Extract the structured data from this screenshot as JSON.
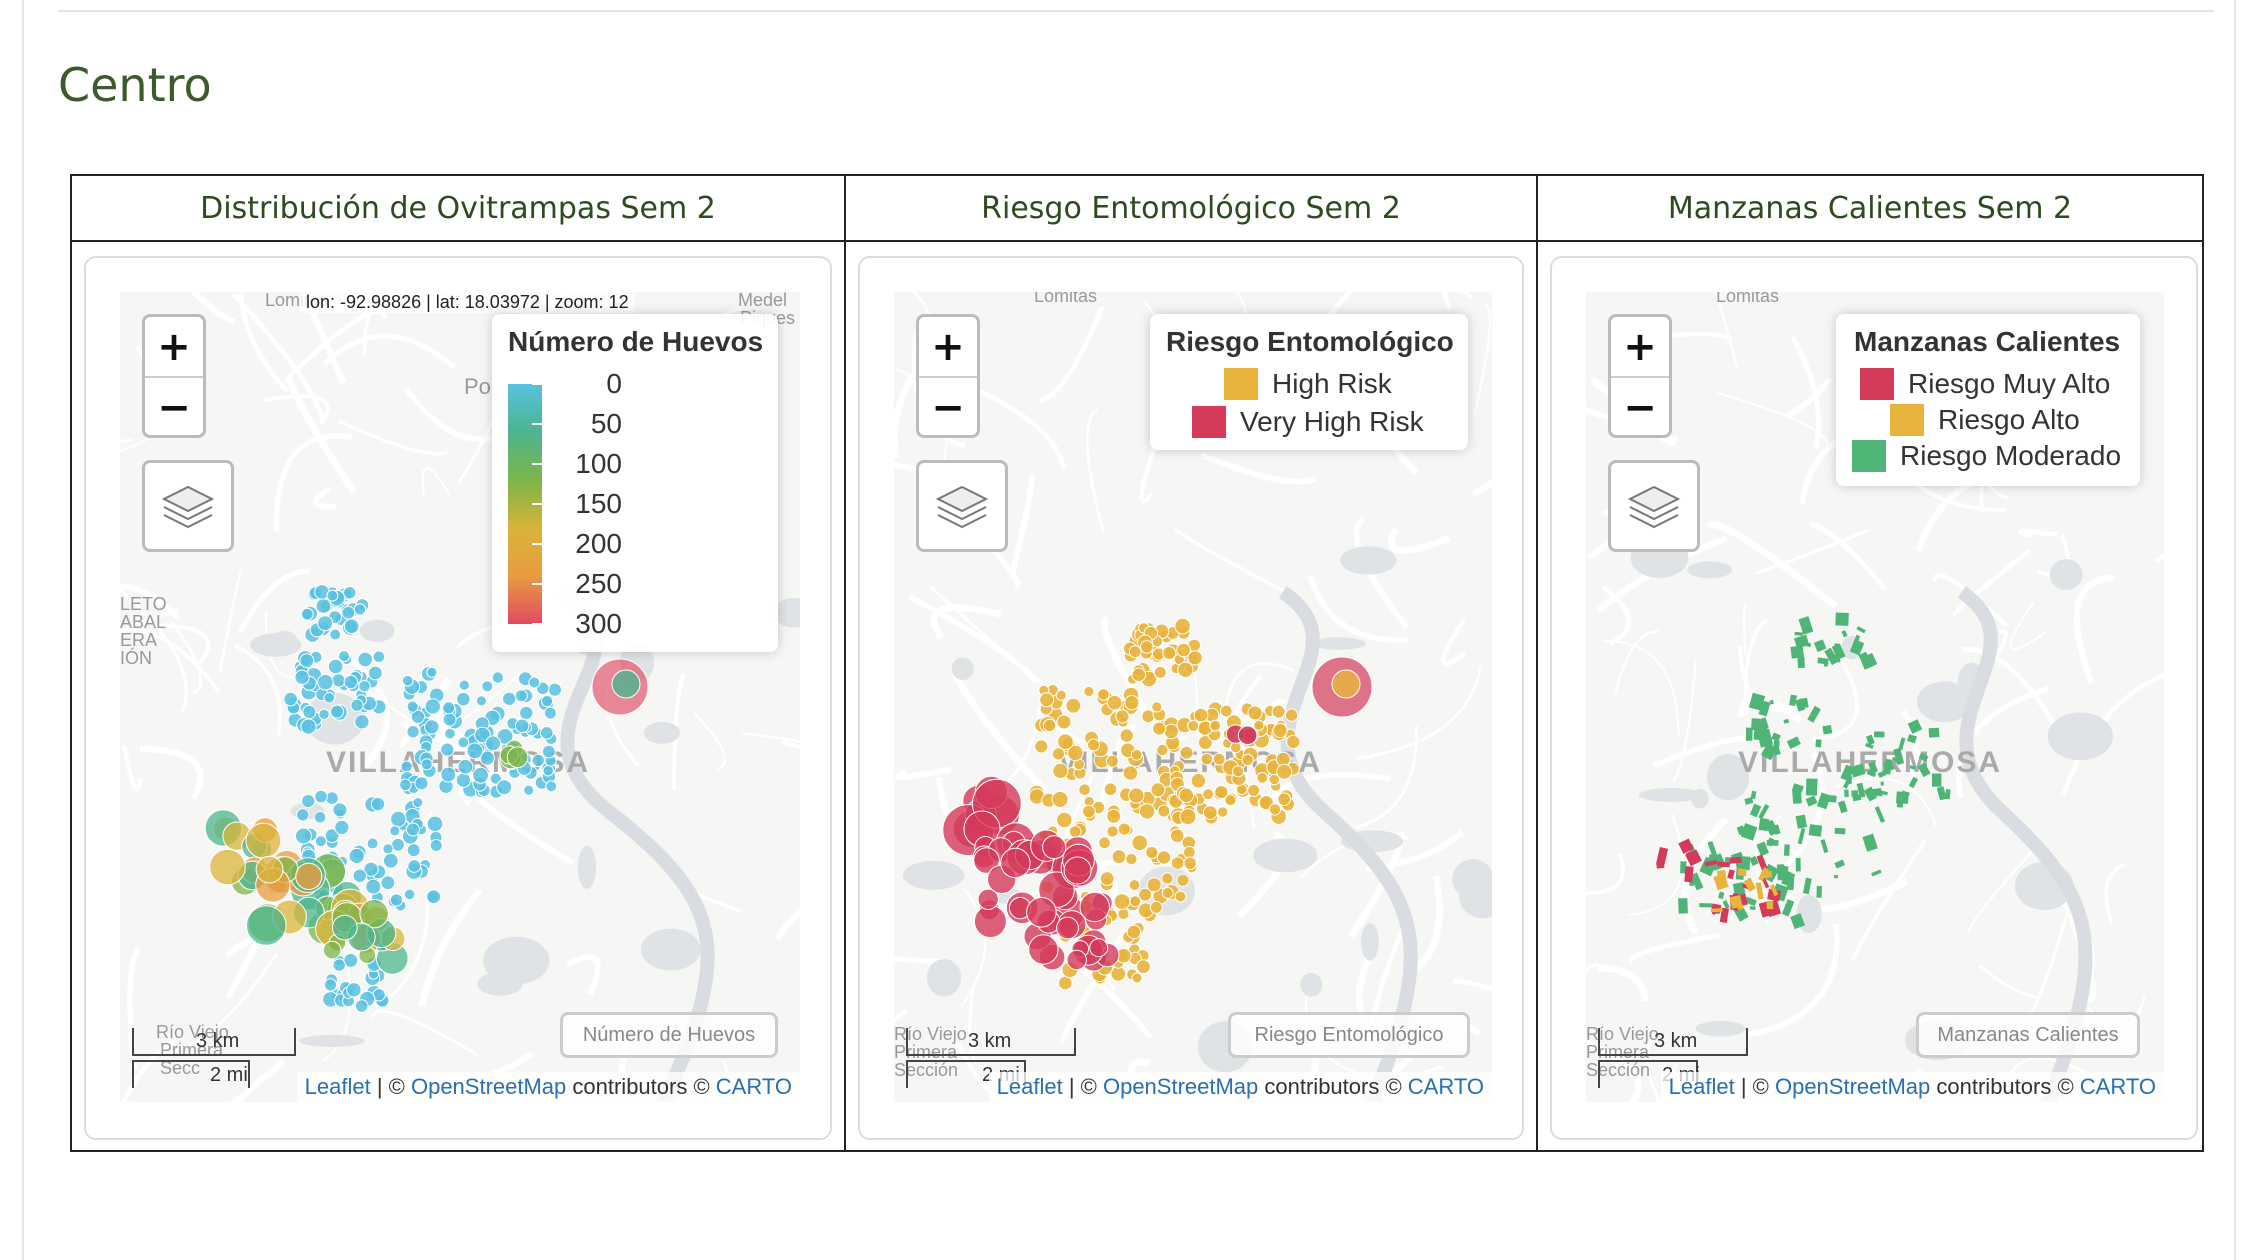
{
  "page": {
    "title": "Centro"
  },
  "columns": [
    {
      "header": "Distribución de Ovitrampas Sem 2"
    },
    {
      "header": "Riesgo Entomológico Sem 2"
    },
    {
      "header": "Manzanas Calientes Sem 2"
    }
  ],
  "map1": {
    "coords": "lon: -92.98826 | lat: 18.03972 | zoom: 12",
    "legend_title": "Número de Huevos",
    "legend_ticks": [
      "0",
      "50",
      "100",
      "150",
      "200",
      "250",
      "300"
    ],
    "legend_colors": [
      "#58c1e0",
      "#4cb58e",
      "#7cb54a",
      "#d9b43a",
      "#e89c40",
      "#df4a62"
    ],
    "layer_toggle": "Número de Huevos",
    "city": "VILLAHERMOSA",
    "places": [
      "Lomitas",
      "Medel",
      "Piques",
      "Po",
      "LETO",
      "ABAL",
      "ERA",
      "IÓN",
      "Río Viejo",
      "Primera",
      "Secc"
    ]
  },
  "map2": {
    "legend_title": "Riesgo Entomológico",
    "legend_items": [
      {
        "label": "High Risk",
        "color": "#e8b43c"
      },
      {
        "label": "Very High Risk",
        "color": "#d43a5a"
      }
    ],
    "layer_toggle": "Riesgo Entomológico",
    "city": "VILLAHERMOSA",
    "places": [
      "Lomitas",
      "Río Viejo",
      "Primera",
      "Sección"
    ]
  },
  "map3": {
    "legend_title": "Manzanas Calientes",
    "legend_items": [
      {
        "label": "Riesgo Muy Alto",
        "color": "#d43a5a"
      },
      {
        "label": "Riesgo Alto",
        "color": "#e8b43c"
      },
      {
        "label": "Riesgo Moderado",
        "color": "#4fb577"
      }
    ],
    "layer_toggle": "Manzanas Calientes",
    "city": "VILLAHERMOSA",
    "places": [
      "Lomitas",
      "Río Viejo",
      "Primera",
      "Sección"
    ]
  },
  "scale": {
    "km": "3 km",
    "mi": "2 mi"
  },
  "attribution": {
    "leaflet": "Leaflet",
    "sep1": " | © ",
    "osm": "OpenStreetMap",
    "mid": " contributors © ",
    "carto": "CARTO"
  },
  "controls": {
    "zoom_in": "+",
    "zoom_out": "−"
  }
}
